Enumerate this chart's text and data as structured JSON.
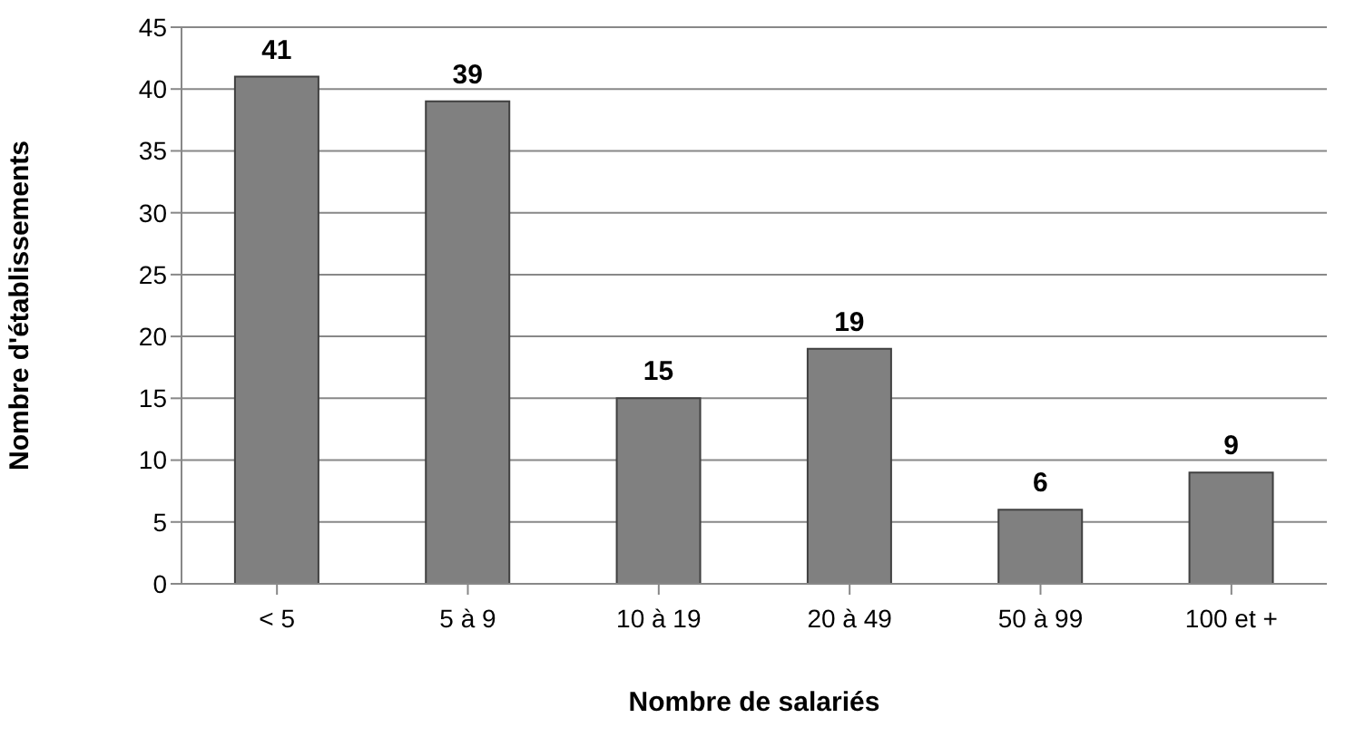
{
  "chart_data": {
    "type": "bar",
    "xlabel": "Nombre de salariés",
    "ylabel": "Nombre d'établissements",
    "categories": [
      "< 5",
      "5 à 9",
      "10 à 19",
      "20 à 49",
      "50 à 99",
      "100 et +"
    ],
    "values": [
      41,
      39,
      15,
      19,
      6,
      9
    ],
    "color": "#808080",
    "ylim": [
      0,
      45
    ],
    "yticks": [
      0,
      5,
      10,
      15,
      20,
      25,
      30,
      35,
      40,
      45
    ],
    "grid": "y",
    "data_labels": true
  }
}
